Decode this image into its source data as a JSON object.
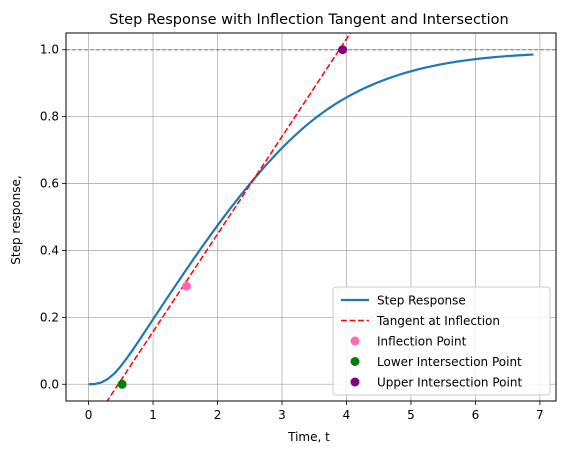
{
  "chart_data": {
    "type": "line",
    "title": "Step Response with Inflection Tangent and Intersection",
    "xlabel": "Time, t",
    "ylabel": "Step response,",
    "xlim": [
      -0.35,
      7.25
    ],
    "ylim": [
      -0.05,
      1.05
    ],
    "xticks": [
      0,
      1,
      2,
      3,
      4,
      5,
      6,
      7
    ],
    "yticks": [
      0.0,
      0.2,
      0.4,
      0.6,
      0.8,
      1.0
    ],
    "xtick_labels": [
      "0",
      "1",
      "2",
      "3",
      "4",
      "5",
      "6",
      "7"
    ],
    "ytick_labels": [
      "0.0",
      "0.2",
      "0.4",
      "0.6",
      "0.8",
      "1.0"
    ],
    "grid": true,
    "legend_position": "lower-right",
    "reference_line": {
      "y": 1.0,
      "style": "dashed",
      "color": "#808080"
    },
    "series": [
      {
        "name": "Step Response",
        "kind": "line",
        "color": "#1f77b4",
        "x": [
          0.0,
          0.1,
          0.2,
          0.3,
          0.4,
          0.5,
          0.6,
          0.7,
          0.8,
          0.9,
          1.0,
          1.1,
          1.2,
          1.3,
          1.4,
          1.5,
          1.6,
          1.7,
          1.8,
          1.9,
          2.0,
          2.1,
          2.2,
          2.3,
          2.4,
          2.5,
          2.6,
          2.7,
          2.8,
          2.9,
          3.0,
          3.1,
          3.2,
          3.3,
          3.4,
          3.5,
          3.6,
          3.7,
          3.8,
          3.9,
          4.0,
          4.1,
          4.2,
          4.3,
          4.4,
          4.5,
          4.6,
          4.7,
          4.8,
          4.9,
          5.0,
          5.1,
          5.2,
          5.3,
          5.4,
          5.5,
          5.6,
          5.7,
          5.8,
          5.9,
          6.0,
          6.1,
          6.2,
          6.3,
          6.4,
          6.5,
          6.6,
          6.7,
          6.8,
          6.9
        ],
        "y": [
          0.0,
          0.0009,
          0.0056,
          0.0158,
          0.0324,
          0.0541,
          0.0796,
          0.1071,
          0.1357,
          0.1649,
          0.1942,
          0.2233,
          0.2524,
          0.2812,
          0.3099,
          0.3383,
          0.3664,
          0.3941,
          0.4214,
          0.4483,
          0.4747,
          0.5006,
          0.5259,
          0.5507,
          0.5749,
          0.5985,
          0.6214,
          0.6437,
          0.6653,
          0.6861,
          0.7062,
          0.7253,
          0.7436,
          0.761,
          0.7774,
          0.7929,
          0.8075,
          0.8212,
          0.8341,
          0.8461,
          0.8574,
          0.8679,
          0.8777,
          0.8869,
          0.8954,
          0.9034,
          0.9108,
          0.9177,
          0.9241,
          0.9301,
          0.9356,
          0.9407,
          0.9454,
          0.9498,
          0.9538,
          0.9575,
          0.9609,
          0.964,
          0.9669,
          0.9695,
          0.9719,
          0.9741,
          0.9761,
          0.9779,
          0.9795,
          0.981,
          0.9823,
          0.9835,
          0.9846,
          0.9856
        ]
      },
      {
        "name": "Tangent at Inflection",
        "kind": "line",
        "style": "dashed",
        "color": "#ff0000",
        "x": [
          0.2,
          4.5
        ],
        "y": [
          -0.076,
          1.178
        ]
      },
      {
        "name": "Inflection Point",
        "kind": "scatter",
        "color": "#ff69b4",
        "points": [
          [
            1.52,
            0.293
          ]
        ]
      },
      {
        "name": "Lower Intersection Point",
        "kind": "scatter",
        "color": "#008000",
        "points": [
          [
            0.52,
            0.0
          ]
        ]
      },
      {
        "name": "Upper Intersection Point",
        "kind": "scatter",
        "color": "#800080",
        "points": [
          [
            3.94,
            1.0
          ]
        ]
      }
    ]
  }
}
